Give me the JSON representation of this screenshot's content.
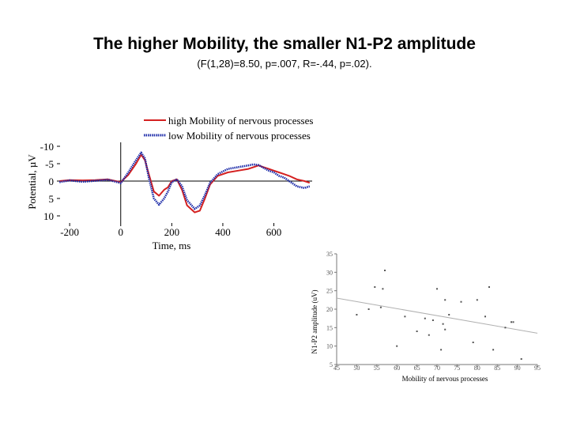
{
  "slide": {
    "title": "The higher Mobility, the smaller N1-P2 amplitude",
    "subtitle": "(F(1,28)=8.50, p=.007, R=-.44, p=.02)."
  },
  "colors": {
    "high": "#d42020",
    "low": "#1b2aa8",
    "scatter": "#555555",
    "trend": "#b0b0b0"
  },
  "chart_data": [
    {
      "type": "line",
      "xlabel": "Time, ms",
      "ylabel": "Potential, µV",
      "x_ticks": [
        -200,
        0,
        200,
        400,
        600
      ],
      "x_tick_labels": [
        "-200",
        "0",
        "200",
        "400",
        "600"
      ],
      "y_ticks": [
        -10,
        -5,
        0,
        5,
        10
      ],
      "y_tick_labels": [
        "-10",
        "-5",
        "0",
        "5",
        "10"
      ],
      "xlim": [
        -250,
        750
      ],
      "ylim": [
        -10,
        10
      ],
      "y_inverted": true,
      "legend": [
        "high Mobility of nervous processes",
        "low Mobility of nervous processes"
      ],
      "series": [
        {
          "name": "high Mobility of nervous processes",
          "style": "solid",
          "x": [
            -240,
            -200,
            -150,
            -100,
            -50,
            0,
            30,
            60,
            80,
            95,
            110,
            130,
            150,
            170,
            185,
            200,
            220,
            240,
            260,
            290,
            310,
            330,
            350,
            380,
            420,
            460,
            500,
            520,
            540,
            560,
            580,
            600,
            620,
            640,
            660,
            690,
            720,
            740
          ],
          "y": [
            0,
            -0.3,
            -0.2,
            -0.3,
            -0.5,
            0.3,
            -1.8,
            -5,
            -7.6,
            -6,
            -2,
            3,
            4.2,
            2.5,
            1.8,
            0,
            -0.5,
            2.5,
            7,
            9,
            8.5,
            5,
            1,
            -1.5,
            -2.5,
            -3,
            -3.5,
            -4,
            -4.5,
            -4,
            -3.5,
            -3,
            -2.5,
            -2,
            -1.5,
            -0.5,
            0,
            0.5
          ]
        },
        {
          "name": "low Mobility of nervous processes",
          "style": "dotted",
          "x": [
            -240,
            -200,
            -150,
            -100,
            -50,
            0,
            30,
            60,
            80,
            95,
            110,
            130,
            150,
            170,
            185,
            200,
            220,
            240,
            260,
            290,
            310,
            330,
            350,
            380,
            420,
            460,
            500,
            520,
            540,
            560,
            580,
            600,
            620,
            640,
            660,
            690,
            720,
            740
          ],
          "y": [
            0.3,
            -0.2,
            0.2,
            -0.1,
            -0.4,
            0.6,
            -2.5,
            -6,
            -8.2,
            -6.5,
            -1,
            5,
            6.8,
            5,
            3,
            0.3,
            -0.5,
            1.5,
            5.5,
            8,
            7,
            4,
            0.5,
            -2,
            -3.5,
            -4,
            -4.5,
            -4.8,
            -4.6,
            -3.8,
            -3,
            -2.5,
            -1.5,
            -1,
            0,
            1.5,
            2,
            1.5
          ]
        }
      ]
    },
    {
      "type": "scatter",
      "xlabel": "Mobility of nervous processes",
      "ylabel": "N1-P2  amplitude (uV)",
      "x_ticks": [
        45,
        50,
        55,
        60,
        65,
        70,
        75,
        80,
        85,
        90,
        95
      ],
      "x_tick_labels": [
        "45",
        "50",
        "55",
        "60",
        "65",
        "70",
        "75",
        "80",
        "85",
        "90",
        "95"
      ],
      "y_ticks": [
        5,
        10,
        15,
        20,
        25,
        30,
        35
      ],
      "y_tick_labels": [
        "5",
        "10",
        "15",
        "20",
        "25",
        "30",
        "35"
      ],
      "xlim": [
        45,
        95
      ],
      "ylim": [
        5,
        35
      ],
      "trend": {
        "x": [
          45,
          95
        ],
        "y": [
          23,
          13.5
        ]
      },
      "points": [
        {
          "x": 50,
          "y": 18.5
        },
        {
          "x": 53,
          "y": 20
        },
        {
          "x": 54.5,
          "y": 26
        },
        {
          "x": 56,
          "y": 20.5
        },
        {
          "x": 56.5,
          "y": 25.5
        },
        {
          "x": 57,
          "y": 30.5
        },
        {
          "x": 60,
          "y": 10
        },
        {
          "x": 62,
          "y": 18
        },
        {
          "x": 65,
          "y": 14
        },
        {
          "x": 67,
          "y": 17.5
        },
        {
          "x": 68,
          "y": 13
        },
        {
          "x": 69,
          "y": 17
        },
        {
          "x": 70,
          "y": 25.5
        },
        {
          "x": 71,
          "y": 9
        },
        {
          "x": 71.5,
          "y": 16
        },
        {
          "x": 72,
          "y": 22.5
        },
        {
          "x": 72,
          "y": 14.5
        },
        {
          "x": 73,
          "y": 18.5
        },
        {
          "x": 76,
          "y": 22
        },
        {
          "x": 79,
          "y": 11
        },
        {
          "x": 80,
          "y": 22.5
        },
        {
          "x": 82,
          "y": 18
        },
        {
          "x": 83,
          "y": 26
        },
        {
          "x": 84,
          "y": 9
        },
        {
          "x": 87,
          "y": 15
        },
        {
          "x": 88.5,
          "y": 16.5
        },
        {
          "x": 89,
          "y": 16.5
        },
        {
          "x": 91,
          "y": 6.5
        }
      ]
    }
  ]
}
